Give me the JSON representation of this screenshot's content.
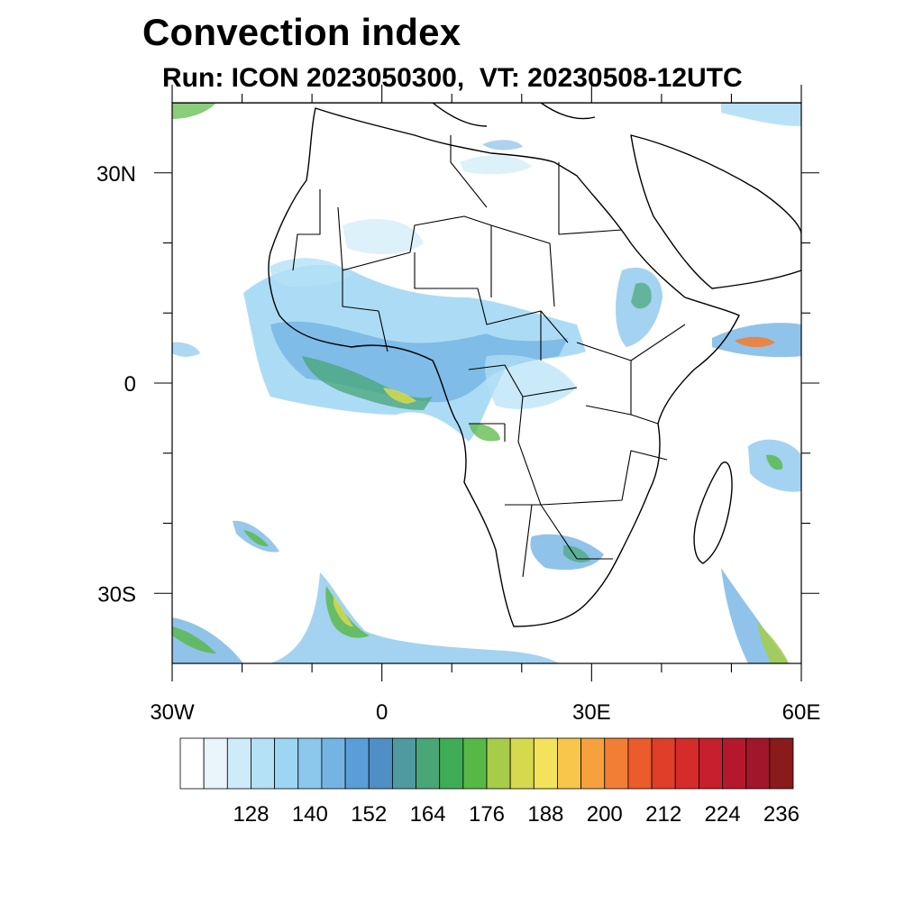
{
  "title": "Convection index",
  "subtitle": "Run: ICON 2023050300,  VT: 20230508-12UTC",
  "map": {
    "lon_range": [
      -30,
      60
    ],
    "lat_range": [
      -40,
      40
    ],
    "lon_ticks": [
      {
        "value": -30,
        "label": "30W"
      },
      {
        "value": 0,
        "label": "0"
      },
      {
        "value": 30,
        "label": "30E"
      },
      {
        "value": 60,
        "label": "60E"
      }
    ],
    "lat_ticks": [
      {
        "value": 30,
        "label": "30N"
      },
      {
        "value": 0,
        "label": "0"
      },
      {
        "value": -30,
        "label": "30S"
      }
    ],
    "minor_lon_ticks": [
      -20,
      -10,
      10,
      20,
      40,
      50
    ],
    "minor_lat_ticks": [
      20,
      10,
      -10,
      -20
    ]
  },
  "colorbar": {
    "colors": [
      "#ffffff",
      "#e9f5fb",
      "#cdebf8",
      "#b4e1f6",
      "#9dd6f3",
      "#8cc8ec",
      "#74b4e3",
      "#5a9ed8",
      "#4f8fc6",
      "#4e9aa0",
      "#48a677",
      "#3fad55",
      "#58b845",
      "#a6cc4a",
      "#d6d94e",
      "#f2e35b",
      "#f7c64a",
      "#f6a13e",
      "#f27e35",
      "#ec5b2b",
      "#e03e29",
      "#d62b2b",
      "#c71f2c",
      "#b5182c",
      "#a0162a",
      "#8b1a1a"
    ],
    "labels": [
      "128",
      "140",
      "152",
      "164",
      "176",
      "188",
      "200",
      "212",
      "224",
      "236"
    ]
  }
}
